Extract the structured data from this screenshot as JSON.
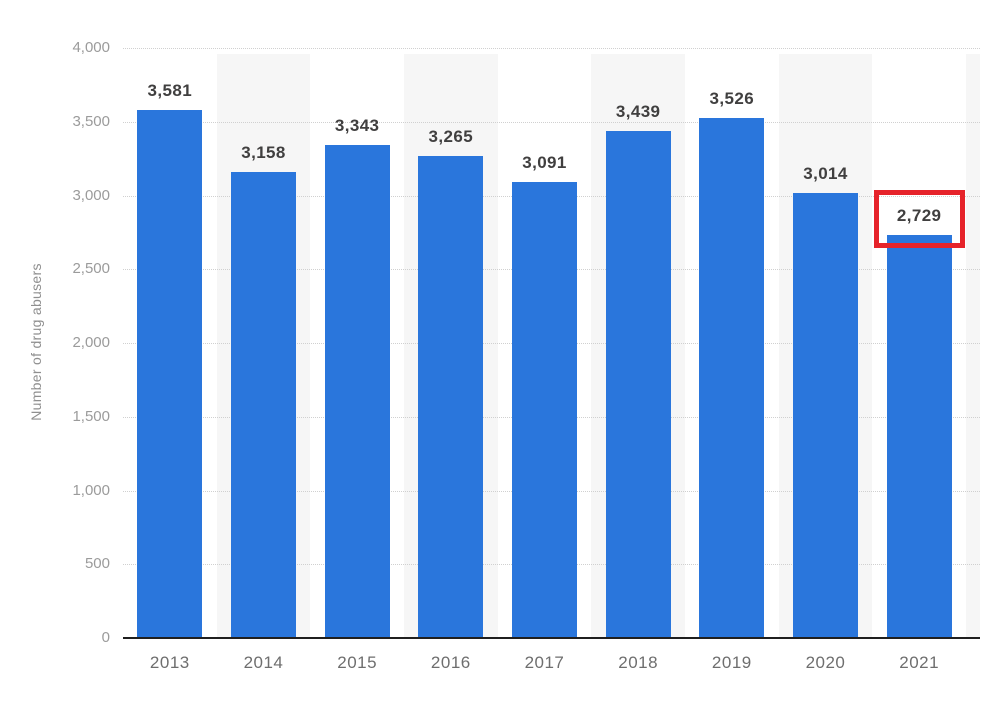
{
  "chart_data": {
    "type": "bar",
    "title": "",
    "xlabel": "",
    "ylabel": "Number of drug abusers",
    "categories": [
      "2013",
      "2014",
      "2015",
      "2016",
      "2017",
      "2018",
      "2019",
      "2020",
      "2021"
    ],
    "values": [
      3581,
      3158,
      3343,
      3265,
      3091,
      3439,
      3526,
      3014,
      2729
    ],
    "value_labels": [
      "3,581",
      "3,158",
      "3,343",
      "3,265",
      "3,091",
      "3,439",
      "3,526",
      "3,014",
      "2,729"
    ],
    "ylim": [
      0,
      4000
    ],
    "ytick_interval": 500,
    "ytick_labels": [
      "0",
      "500",
      "1,000",
      "1,500",
      "2,000",
      "2,500",
      "3,000",
      "3,500",
      "4,000"
    ],
    "grid": "horizontal-dotted",
    "legend": "none",
    "plot_style": "alternating vertical category bands",
    "colors": {
      "bar": "#2a76dc",
      "band": "#f6f6f6",
      "gridline": "#d0d0d0",
      "axis_line": "#1f1f1f",
      "ytick_text": "#9b9b9b",
      "xtick_text": "#6e6e6e",
      "value_text": "#403f3f",
      "ylabel_text": "#8f8f8f",
      "highlight_box": "#e6232a"
    },
    "highlight": {
      "category": "2021",
      "value_label": "2,729",
      "style": "red rectangle outline around the 2021 value label and bar top"
    }
  }
}
